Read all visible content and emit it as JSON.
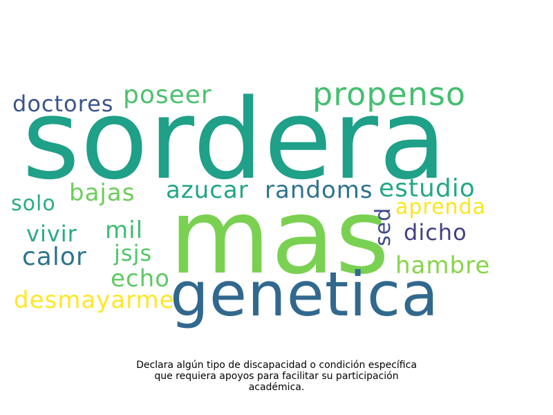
{
  "words": [
    {
      "text": "sordera",
      "color": "#1fa088"
    },
    {
      "text": "mas",
      "color": "#7ad151"
    },
    {
      "text": "genetica",
      "color": "#31688e"
    },
    {
      "text": "propenso",
      "color": "#44bf70"
    },
    {
      "text": "poseer",
      "color": "#4ac16d"
    },
    {
      "text": "doctores",
      "color": "#3b528b"
    },
    {
      "text": "azucar",
      "color": "#20a486"
    },
    {
      "text": "randoms",
      "color": "#2c728e"
    },
    {
      "text": "estudio",
      "color": "#22a884"
    },
    {
      "text": "bajas",
      "color": "#6ccd5a"
    },
    {
      "text": "solo",
      "color": "#27ad81"
    },
    {
      "text": "aprenda",
      "color": "#f8e621"
    },
    {
      "text": "sed",
      "color": "#3e4989"
    },
    {
      "text": "mil",
      "color": "#3dbc74"
    },
    {
      "text": "vivir",
      "color": "#25ab82"
    },
    {
      "text": "dicho",
      "color": "#433e85"
    },
    {
      "text": "calor",
      "color": "#2c738e"
    },
    {
      "text": "jsjs",
      "color": "#52c569"
    },
    {
      "text": "hambre",
      "color": "#86d549"
    },
    {
      "text": "echo",
      "color": "#5ec962"
    },
    {
      "text": "desmayarme",
      "color": "#fde725"
    }
  ],
  "caption": {
    "lines": [
      "Declara algún tipo de discapacidad o condición específica",
      "que requiera apoyos para facilitar su participación",
      "académica."
    ]
  }
}
